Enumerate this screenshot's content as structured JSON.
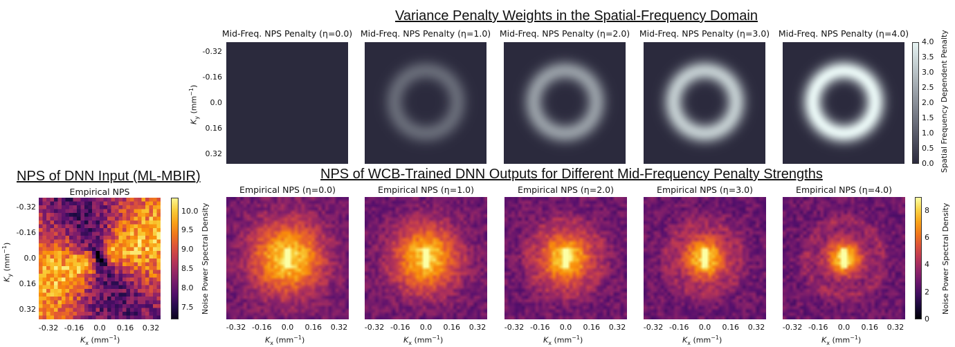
{
  "titles": {
    "top_section": "Variance Penalty Weights in the Spatial-Frequency Domain",
    "left_section": "NPS of DNN Input (ML-MBIR)",
    "bottom_section": "NPS of WCB-Trained DNN Outputs for Different Mid-Frequency Penalty Strengths"
  },
  "chart_data": [
    {
      "type": "heatmap",
      "group": "penalty",
      "panels": [
        {
          "title": "Mid-Freq. NPS Penalty (η=0.0)",
          "eta": 0.0
        },
        {
          "title": "Mid-Freq. NPS Penalty (η=1.0)",
          "eta": 1.0
        },
        {
          "title": "Mid-Freq. NPS Penalty (η=2.0)",
          "eta": 2.0
        },
        {
          "title": "Mid-Freq. NPS Penalty (η=3.0)",
          "eta": 3.0
        },
        {
          "title": "Mid-Freq. NPS Penalty (η=4.0)",
          "eta": 4.0
        }
      ],
      "ylabel": "K",
      "ylabel_sub": "y",
      "ylabel_unit": "(mm",
      "ylabel_exp": "−1",
      "ylabel_close": ")",
      "y_ticks": [
        "-0.32",
        "-0.16",
        "0.0",
        "0.16",
        "0.32"
      ],
      "colorbar": {
        "label": "Spatial Frequency Dependent Penalty",
        "range": [
          0.0,
          4.0
        ],
        "ticks": [
          "4.0",
          "3.5",
          "3.0",
          "2.5",
          "2.0",
          "1.5",
          "1.0",
          "0.5",
          "0.0"
        ],
        "colors": [
          "#2b2a3d",
          "#e6f3f2"
        ]
      }
    },
    {
      "type": "heatmap",
      "group": "input_nps",
      "title": "Empirical NPS",
      "xlabel": "K",
      "xlabel_sub": "x",
      "xlabel_unit": "(mm",
      "xlabel_exp": "−1",
      "xlabel_close": ")",
      "ylabel": "K",
      "ylabel_sub": "y",
      "ylabel_unit": "(mm",
      "ylabel_exp": "−1",
      "ylabel_close": ")",
      "x_ticks": [
        "-0.32",
        "-0.16",
        "0.0",
        "0.16",
        "0.32"
      ],
      "y_ticks": [
        "-0.32",
        "-0.16",
        "0.0",
        "0.16",
        "0.32"
      ],
      "colorbar": {
        "label": "Noise Power Spectral Density",
        "range": [
          7.2,
          10.35
        ],
        "ticks": [
          "10.0",
          "9.5",
          "9.0",
          "8.5",
          "8.0",
          "7.5"
        ],
        "colormap": "inferno"
      }
    },
    {
      "type": "heatmap",
      "group": "output_nps",
      "panels": [
        {
          "title": "Empirical NPS (η=0.0)",
          "eta": 0.0
        },
        {
          "title": "Empirical NPS (η=1.0)",
          "eta": 1.0
        },
        {
          "title": "Empirical NPS (η=2.0)",
          "eta": 2.0
        },
        {
          "title": "Empirical NPS (η=3.0)",
          "eta": 3.0
        },
        {
          "title": "Empirical NPS (η=4.0)",
          "eta": 4.0
        }
      ],
      "xlabel": "K",
      "xlabel_sub": "x",
      "xlabel_unit": "(mm",
      "xlabel_exp": "−1",
      "xlabel_close": ")",
      "x_ticks": [
        "-0.32",
        "-0.16",
        "0.0",
        "0.16",
        "0.32"
      ],
      "colorbar": {
        "label": "Noise Power Spectral Density",
        "range": [
          0,
          9
        ],
        "ticks": [
          "8",
          "6",
          "4",
          "2",
          "0"
        ],
        "colormap": "inferno"
      }
    }
  ]
}
